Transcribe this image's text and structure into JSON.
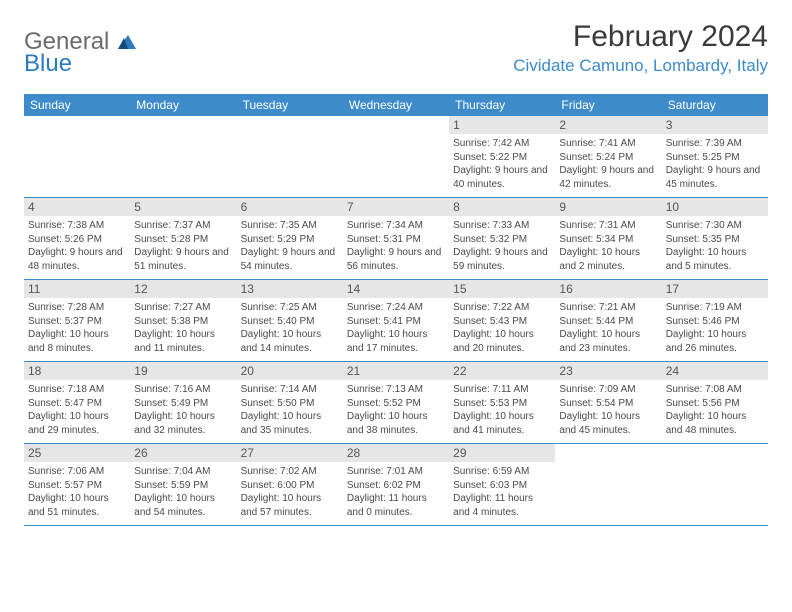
{
  "logo": {
    "general": "General",
    "blue": "Blue"
  },
  "title": "February 2024",
  "location": "Cividate Camuno, Lombardy, Italy",
  "colors": {
    "header_bg": "#3d8bc9",
    "daynum_bg": "#e6e6e6",
    "border": "#3d8bc9",
    "logo_gray": "#6b6b6b",
    "logo_blue": "#2b7bbf"
  },
  "weekdays": [
    "Sunday",
    "Monday",
    "Tuesday",
    "Wednesday",
    "Thursday",
    "Friday",
    "Saturday"
  ],
  "weeks": [
    [
      null,
      null,
      null,
      null,
      {
        "n": "1",
        "sr": "7:42 AM",
        "ss": "5:22 PM",
        "dl": "9 hours and 40 minutes."
      },
      {
        "n": "2",
        "sr": "7:41 AM",
        "ss": "5:24 PM",
        "dl": "9 hours and 42 minutes."
      },
      {
        "n": "3",
        "sr": "7:39 AM",
        "ss": "5:25 PM",
        "dl": "9 hours and 45 minutes."
      }
    ],
    [
      {
        "n": "4",
        "sr": "7:38 AM",
        "ss": "5:26 PM",
        "dl": "9 hours and 48 minutes."
      },
      {
        "n": "5",
        "sr": "7:37 AM",
        "ss": "5:28 PM",
        "dl": "9 hours and 51 minutes."
      },
      {
        "n": "6",
        "sr": "7:35 AM",
        "ss": "5:29 PM",
        "dl": "9 hours and 54 minutes."
      },
      {
        "n": "7",
        "sr": "7:34 AM",
        "ss": "5:31 PM",
        "dl": "9 hours and 56 minutes."
      },
      {
        "n": "8",
        "sr": "7:33 AM",
        "ss": "5:32 PM",
        "dl": "9 hours and 59 minutes."
      },
      {
        "n": "9",
        "sr": "7:31 AM",
        "ss": "5:34 PM",
        "dl": "10 hours and 2 minutes."
      },
      {
        "n": "10",
        "sr": "7:30 AM",
        "ss": "5:35 PM",
        "dl": "10 hours and 5 minutes."
      }
    ],
    [
      {
        "n": "11",
        "sr": "7:28 AM",
        "ss": "5:37 PM",
        "dl": "10 hours and 8 minutes."
      },
      {
        "n": "12",
        "sr": "7:27 AM",
        "ss": "5:38 PM",
        "dl": "10 hours and 11 minutes."
      },
      {
        "n": "13",
        "sr": "7:25 AM",
        "ss": "5:40 PM",
        "dl": "10 hours and 14 minutes."
      },
      {
        "n": "14",
        "sr": "7:24 AM",
        "ss": "5:41 PM",
        "dl": "10 hours and 17 minutes."
      },
      {
        "n": "15",
        "sr": "7:22 AM",
        "ss": "5:43 PM",
        "dl": "10 hours and 20 minutes."
      },
      {
        "n": "16",
        "sr": "7:21 AM",
        "ss": "5:44 PM",
        "dl": "10 hours and 23 minutes."
      },
      {
        "n": "17",
        "sr": "7:19 AM",
        "ss": "5:46 PM",
        "dl": "10 hours and 26 minutes."
      }
    ],
    [
      {
        "n": "18",
        "sr": "7:18 AM",
        "ss": "5:47 PM",
        "dl": "10 hours and 29 minutes."
      },
      {
        "n": "19",
        "sr": "7:16 AM",
        "ss": "5:49 PM",
        "dl": "10 hours and 32 minutes."
      },
      {
        "n": "20",
        "sr": "7:14 AM",
        "ss": "5:50 PM",
        "dl": "10 hours and 35 minutes."
      },
      {
        "n": "21",
        "sr": "7:13 AM",
        "ss": "5:52 PM",
        "dl": "10 hours and 38 minutes."
      },
      {
        "n": "22",
        "sr": "7:11 AM",
        "ss": "5:53 PM",
        "dl": "10 hours and 41 minutes."
      },
      {
        "n": "23",
        "sr": "7:09 AM",
        "ss": "5:54 PM",
        "dl": "10 hours and 45 minutes."
      },
      {
        "n": "24",
        "sr": "7:08 AM",
        "ss": "5:56 PM",
        "dl": "10 hours and 48 minutes."
      }
    ],
    [
      {
        "n": "25",
        "sr": "7:06 AM",
        "ss": "5:57 PM",
        "dl": "10 hours and 51 minutes."
      },
      {
        "n": "26",
        "sr": "7:04 AM",
        "ss": "5:59 PM",
        "dl": "10 hours and 54 minutes."
      },
      {
        "n": "27",
        "sr": "7:02 AM",
        "ss": "6:00 PM",
        "dl": "10 hours and 57 minutes."
      },
      {
        "n": "28",
        "sr": "7:01 AM",
        "ss": "6:02 PM",
        "dl": "11 hours and 0 minutes."
      },
      {
        "n": "29",
        "sr": "6:59 AM",
        "ss": "6:03 PM",
        "dl": "11 hours and 4 minutes."
      },
      null,
      null
    ]
  ]
}
